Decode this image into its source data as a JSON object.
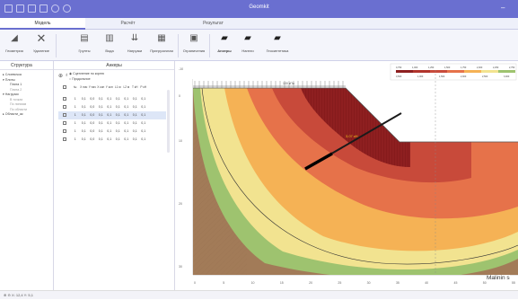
{
  "window": {
    "title": "Geomkit",
    "min_symbol": "–"
  },
  "tabs": [
    {
      "label": "Модель",
      "active": true
    },
    {
      "label": "Расчёт",
      "active": false
    },
    {
      "label": "Результат",
      "active": false
    }
  ],
  "ribbon": {
    "geometry": "Геометрия",
    "delete": "Удаление",
    "soils": "Грунты",
    "water": "Вода",
    "loads": "Нагрузки",
    "retaining": "Пригрузочная",
    "limits": "Ограничения",
    "anchors": "Анкеры",
    "nails": "Нагели",
    "geosynthetics": "Геосинтетика"
  },
  "structure_panel": {
    "title": "Структура",
    "tree": [
      "▸ Слоевочка",
      "▾ Плиты",
      "Плита 1",
      "Плита 2",
      "▾ Нагрузки",
      "В точках",
      "По линиям",
      "По области",
      "▸ Области_ак"
    ]
  },
  "anchors_panel": {
    "title": "Анкеры",
    "radio_1": "Сцепление по корню",
    "radio_2": "Продольное",
    "headers": [
      "№",
      "X\nнач",
      "Y\nнач",
      "X\nкон",
      "Y\nкон",
      "L1\nм",
      "L2\nм",
      "T\nкН",
      "P\nкН"
    ],
    "rows": [
      [
        "1",
        "0,1",
        "0,0",
        "0,1",
        "0,1",
        "0,1",
        "0,1",
        "0,1",
        "0,1"
      ],
      [
        "1",
        "0,1",
        "0,0",
        "0,1",
        "0,1",
        "0,1",
        "0,1",
        "0,1",
        "0,1"
      ],
      [
        "1",
        "0,1",
        "0,0",
        "0,1",
        "0,1",
        "0,1",
        "0,1",
        "0,1",
        "0,1"
      ],
      [
        "1",
        "0,1",
        "0,0",
        "0,1",
        "0,1",
        "0,1",
        "0,1",
        "0,1",
        "0,1"
      ],
      [
        "1",
        "0,1",
        "0,0",
        "0,1",
        "0,1",
        "0,1",
        "0,1",
        "0,1",
        "0,1"
      ],
      [
        "1",
        "0,1",
        "0,0",
        "0,1",
        "0,1",
        "0,1",
        "0,1",
        "0,1",
        "0,1"
      ]
    ],
    "selected_row": 2
  },
  "canvas": {
    "y_ticks": [
      "-10",
      "0",
      "10",
      "20",
      "30"
    ],
    "x_ticks": [
      "0",
      "5",
      "10",
      "15",
      "20",
      "25",
      "30",
      "35",
      "40",
      "45",
      "50",
      "55"
    ],
    "load_label": "100 кПа",
    "anchor_label": "3,07 кН",
    "legend_values_top": [
      "0,750",
      "1,000",
      "1,250",
      "1,500",
      "1,750",
      "2,000",
      "2,250",
      "2,750"
    ],
    "legend_values_bottom": [
      "0,500",
      "1,000",
      "1,500",
      "2,000",
      "2,500",
      "3,000"
    ],
    "colors": {
      "zone1": "#8e1f20",
      "zone2": "#c84a3a",
      "zone3": "#e6724a",
      "zone4": "#f5b255",
      "zone5": "#f2e390",
      "zone6": "#9ec36f",
      "soil": "#a27b58",
      "fill": "#bea183"
    }
  },
  "statusbar": {
    "text": "X: 12,4  Y: 5,1"
  },
  "watermark": "Malinin s"
}
